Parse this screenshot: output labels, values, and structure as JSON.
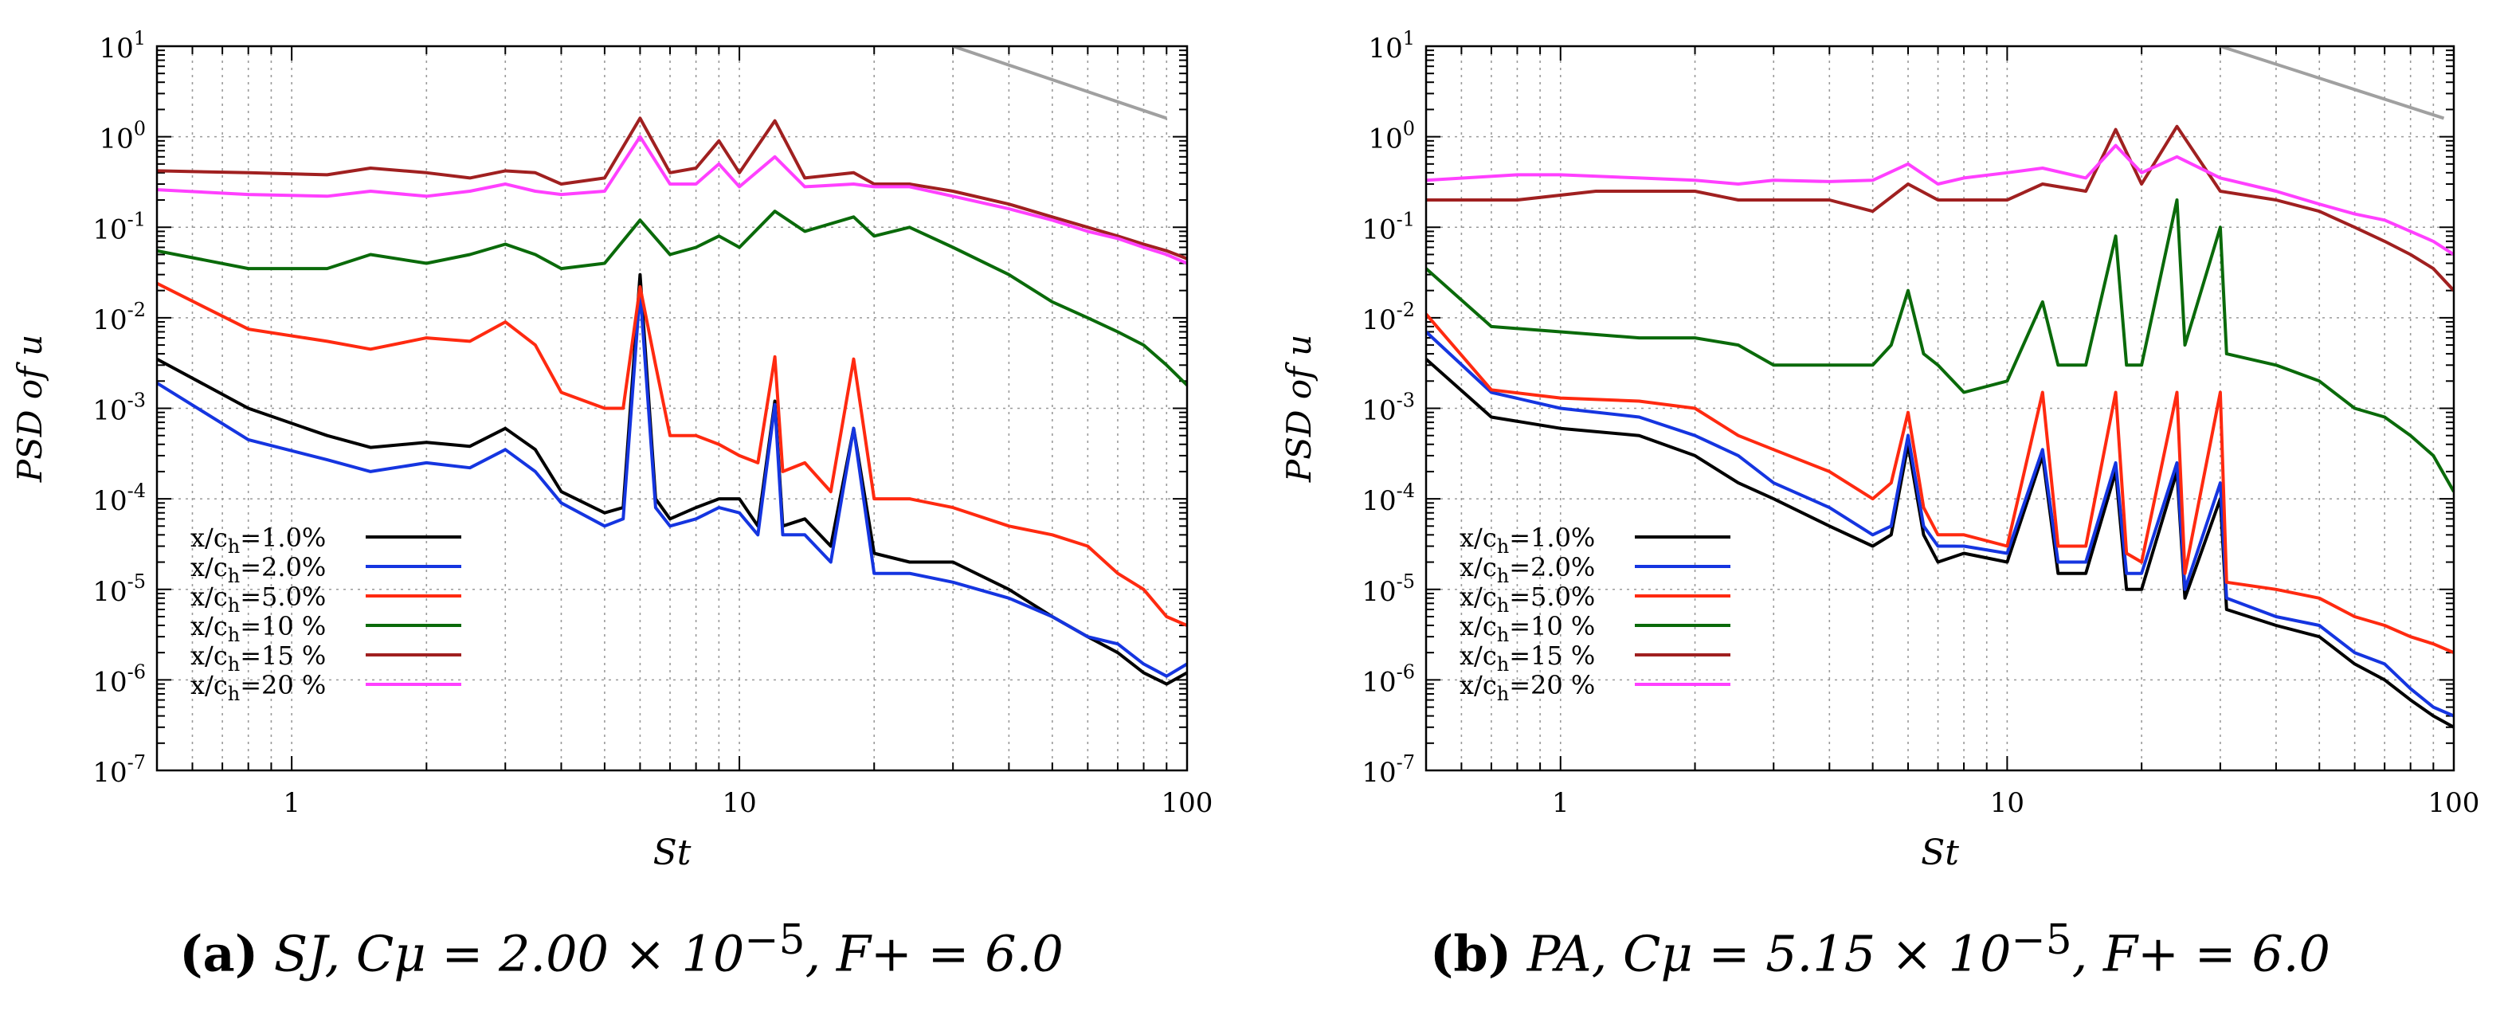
{
  "chart_data": [
    {
      "type": "line",
      "panel": "a",
      "caption_label": "(a)",
      "caption_math": "SJ, Cμ = 2.00 × 10",
      "caption_exp": "−5",
      "caption_tail": ", F+ = 6.0",
      "xlabel": "St",
      "ylabel": "PSD of u",
      "xscale": "log",
      "yscale": "log",
      "xlim": [
        0.5,
        100
      ],
      "ylim": [
        1e-07,
        10
      ],
      "xticks": [
        "1",
        "10",
        "100"
      ],
      "yticks": [
        "10-7",
        "10-6",
        "10-5",
        "10-4",
        "10-3",
        "10-2",
        "10-1",
        "100",
        "101"
      ],
      "grid": true,
      "legend_position": "lower-left",
      "reference_line": {
        "color": "#a0a0a0",
        "x": [
          30,
          90
        ],
        "y": [
          10,
          1.6
        ]
      },
      "series": [
        {
          "name": "x/ch=1.0%",
          "color": "#000000",
          "x": [
            0.5,
            0.8,
            1.2,
            1.5,
            2.0,
            2.5,
            3.0,
            3.5,
            4.0,
            5.0,
            5.5,
            6.0,
            6.5,
            7.0,
            8.0,
            9.0,
            10.0,
            11.0,
            12.0,
            12.5,
            14.0,
            16.0,
            18.0,
            20.0,
            24.0,
            30.0,
            40.0,
            50.0,
            60.0,
            70.0,
            80.0,
            90.0,
            100.0
          ],
          "y": [
            0.0035,
            0.001,
            0.0005,
            0.00037,
            0.00042,
            0.00038,
            0.0006,
            0.00035,
            0.00012,
            7e-05,
            8e-05,
            0.03,
            0.0001,
            6e-05,
            8e-05,
            0.0001,
            0.0001,
            5e-05,
            0.0012,
            5e-05,
            6e-05,
            3e-05,
            0.0006,
            2.5e-05,
            2e-05,
            2e-05,
            1e-05,
            5e-06,
            3e-06,
            2e-06,
            1.2e-06,
            9e-07,
            1.2e-06
          ]
        },
        {
          "name": "x/ch=2.0%",
          "color": "#1535e0",
          "x": [
            0.5,
            0.8,
            1.2,
            1.5,
            2.0,
            2.5,
            3.0,
            3.5,
            4.0,
            5.0,
            5.5,
            6.0,
            6.5,
            7.0,
            8.0,
            9.0,
            10.0,
            11.0,
            12.0,
            12.5,
            14.0,
            16.0,
            18.0,
            20.0,
            24.0,
            30.0,
            40.0,
            50.0,
            60.0,
            70.0,
            80.0,
            90.0,
            100.0
          ],
          "y": [
            0.0019,
            0.00045,
            0.00027,
            0.0002,
            0.00025,
            0.00022,
            0.00035,
            0.0002,
            9e-05,
            5e-05,
            6e-05,
            0.02,
            8e-05,
            5e-05,
            6e-05,
            8e-05,
            7e-05,
            4e-05,
            0.0011,
            4e-05,
            4e-05,
            2e-05,
            0.0006,
            1.5e-05,
            1.5e-05,
            1.2e-05,
            8e-06,
            5e-06,
            3e-06,
            2.5e-06,
            1.5e-06,
            1.1e-06,
            1.5e-06
          ]
        },
        {
          "name": "x/ch=5.0%",
          "color": "#ff2a10",
          "x": [
            0.5,
            0.8,
            1.2,
            1.5,
            2.0,
            2.5,
            3.0,
            3.5,
            4.0,
            5.0,
            5.5,
            6.0,
            6.5,
            7.0,
            8.0,
            9.0,
            10.0,
            11.0,
            12.0,
            12.5,
            14.0,
            16.0,
            18.0,
            20.0,
            24.0,
            30.0,
            40.0,
            50.0,
            60.0,
            70.0,
            80.0,
            90.0,
            100.0
          ],
          "y": [
            0.024,
            0.0075,
            0.0055,
            0.0045,
            0.006,
            0.0055,
            0.009,
            0.005,
            0.0015,
            0.001,
            0.001,
            0.022,
            0.003,
            0.0005,
            0.0005,
            0.0004,
            0.0003,
            0.00025,
            0.0037,
            0.0002,
            0.00025,
            0.00012,
            0.0035,
            0.0001,
            0.0001,
            8e-05,
            5e-05,
            4e-05,
            3e-05,
            1.5e-05,
            1e-05,
            5e-06,
            4e-06
          ]
        },
        {
          "name": "x/ch=10 %",
          "color": "#0a6a0a",
          "x": [
            0.5,
            0.8,
            1.2,
            1.5,
            2.0,
            2.5,
            3.0,
            3.5,
            4.0,
            5.0,
            6.0,
            7.0,
            8.0,
            9.0,
            10.0,
            12.0,
            14.0,
            18.0,
            20.0,
            24.0,
            30.0,
            40.0,
            50.0,
            60.0,
            70.0,
            80.0,
            90.0,
            100.0
          ],
          "y": [
            0.055,
            0.035,
            0.035,
            0.05,
            0.04,
            0.05,
            0.065,
            0.05,
            0.035,
            0.04,
            0.12,
            0.05,
            0.06,
            0.08,
            0.06,
            0.15,
            0.09,
            0.13,
            0.08,
            0.1,
            0.06,
            0.03,
            0.015,
            0.01,
            0.007,
            0.005,
            0.003,
            0.0018
          ]
        },
        {
          "name": "x/ch=15 %",
          "color": "#a02020",
          "x": [
            0.5,
            0.8,
            1.2,
            1.5,
            2.0,
            2.5,
            3.0,
            3.5,
            4.0,
            5.0,
            6.0,
            7.0,
            8.0,
            9.0,
            10.0,
            12.0,
            14.0,
            18.0,
            20.0,
            24.0,
            30.0,
            40.0,
            50.0,
            60.0,
            70.0,
            80.0,
            90.0,
            100.0
          ],
          "y": [
            0.42,
            0.4,
            0.38,
            0.45,
            0.4,
            0.35,
            0.42,
            0.4,
            0.3,
            0.35,
            1.6,
            0.4,
            0.45,
            0.9,
            0.4,
            1.5,
            0.35,
            0.4,
            0.3,
            0.3,
            0.25,
            0.18,
            0.13,
            0.1,
            0.08,
            0.065,
            0.055,
            0.045
          ]
        },
        {
          "name": "x/ch=20 %",
          "color": "#ff40ff",
          "x": [
            0.5,
            0.8,
            1.2,
            1.5,
            2.0,
            2.5,
            3.0,
            3.5,
            4.0,
            5.0,
            6.0,
            7.0,
            8.0,
            9.0,
            10.0,
            12.0,
            14.0,
            18.0,
            20.0,
            24.0,
            30.0,
            40.0,
            50.0,
            60.0,
            70.0,
            80.0,
            90.0,
            100.0
          ],
          "y": [
            0.26,
            0.23,
            0.22,
            0.25,
            0.22,
            0.25,
            0.3,
            0.25,
            0.23,
            0.25,
            1.0,
            0.3,
            0.3,
            0.5,
            0.28,
            0.6,
            0.28,
            0.3,
            0.28,
            0.28,
            0.22,
            0.16,
            0.12,
            0.09,
            0.075,
            0.06,
            0.05,
            0.04
          ]
        }
      ]
    },
    {
      "type": "line",
      "panel": "b",
      "caption_label": "(b)",
      "caption_math": "PA, Cμ = 5.15 × 10",
      "caption_exp": "−5",
      "caption_tail": ", F+ = 6.0",
      "xlabel": "St",
      "ylabel": "PSD of u",
      "xscale": "log",
      "yscale": "log",
      "xlim": [
        0.5,
        100
      ],
      "ylim": [
        1e-07,
        10
      ],
      "xticks": [
        "1",
        "10",
        "100"
      ],
      "yticks": [
        "10-7",
        "10-6",
        "10-5",
        "10-4",
        "10-3",
        "10-2",
        "10-1",
        "100",
        "101"
      ],
      "grid": true,
      "legend_position": "lower-left",
      "reference_line": {
        "color": "#a0a0a0",
        "x": [
          30,
          95
        ],
        "y": [
          10,
          1.6
        ]
      },
      "series": [
        {
          "name": "x/ch=1.0%",
          "color": "#000000",
          "x": [
            0.5,
            0.7,
            1.0,
            1.5,
            2.0,
            2.5,
            3.0,
            4.0,
            5.0,
            5.5,
            6.0,
            6.5,
            7.0,
            8.0,
            10.0,
            12.0,
            13.0,
            15.0,
            17.5,
            18.5,
            20.0,
            24.0,
            25.0,
            30.0,
            31.0,
            40.0,
            50.0,
            60.0,
            70.0,
            80.0,
            90.0,
            100.0
          ],
          "y": [
            0.0035,
            0.0008,
            0.0006,
            0.0005,
            0.0003,
            0.00015,
            0.0001,
            5e-05,
            3e-05,
            4e-05,
            0.0004,
            4e-05,
            2e-05,
            2.5e-05,
            2e-05,
            0.0003,
            1.5e-05,
            1.5e-05,
            0.0002,
            1e-05,
            1e-05,
            0.0002,
            8e-06,
            0.0001,
            6e-06,
            4e-06,
            3e-06,
            1.5e-06,
            1e-06,
            6e-07,
            4e-07,
            3e-07
          ]
        },
        {
          "name": "x/ch=2.0%",
          "color": "#1535e0",
          "x": [
            0.5,
            0.7,
            1.0,
            1.5,
            2.0,
            2.5,
            3.0,
            4.0,
            5.0,
            5.5,
            6.0,
            6.5,
            7.0,
            8.0,
            10.0,
            12.0,
            13.0,
            15.0,
            17.5,
            18.5,
            20.0,
            24.0,
            25.0,
            30.0,
            31.0,
            40.0,
            50.0,
            60.0,
            70.0,
            80.0,
            90.0,
            100.0
          ],
          "y": [
            0.007,
            0.0015,
            0.001,
            0.0008,
            0.0005,
            0.0003,
            0.00015,
            8e-05,
            4e-05,
            5e-05,
            0.0005,
            5e-05,
            3e-05,
            3e-05,
            2.5e-05,
            0.00035,
            2e-05,
            2e-05,
            0.00025,
            1.5e-05,
            1.5e-05,
            0.00025,
            1e-05,
            0.00015,
            8e-06,
            5e-06,
            4e-06,
            2e-06,
            1.5e-06,
            8e-07,
            5e-07,
            4e-07
          ]
        },
        {
          "name": "x/ch=5.0%",
          "color": "#ff2a10",
          "x": [
            0.5,
            0.7,
            1.0,
            1.5,
            2.0,
            2.5,
            3.0,
            4.0,
            5.0,
            5.5,
            6.0,
            6.5,
            7.0,
            8.0,
            10.0,
            12.0,
            13.0,
            15.0,
            17.5,
            18.5,
            20.0,
            24.0,
            25.0,
            30.0,
            31.0,
            40.0,
            50.0,
            60.0,
            70.0,
            80.0,
            90.0,
            100.0
          ],
          "y": [
            0.011,
            0.0016,
            0.0013,
            0.0012,
            0.001,
            0.0005,
            0.00035,
            0.0002,
            0.0001,
            0.00015,
            0.0009,
            8e-05,
            4e-05,
            4e-05,
            3e-05,
            0.0015,
            3e-05,
            3e-05,
            0.0015,
            2.5e-05,
            2e-05,
            0.0015,
            1.5e-05,
            0.0015,
            1.2e-05,
            1e-05,
            8e-06,
            5e-06,
            4e-06,
            3e-06,
            2.5e-06,
            2e-06
          ]
        },
        {
          "name": "x/ch=10 %",
          "color": "#0a6a0a",
          "x": [
            0.5,
            0.7,
            1.0,
            1.5,
            2.0,
            2.5,
            3.0,
            4.0,
            5.0,
            5.5,
            6.0,
            6.5,
            7.0,
            8.0,
            10.0,
            12.0,
            13.0,
            15.0,
            17.5,
            18.5,
            20.0,
            24.0,
            25.0,
            30.0,
            31.0,
            40.0,
            50.0,
            60.0,
            70.0,
            80.0,
            90.0,
            100.0
          ],
          "y": [
            0.035,
            0.008,
            0.007,
            0.006,
            0.006,
            0.005,
            0.003,
            0.003,
            0.003,
            0.005,
            0.02,
            0.004,
            0.003,
            0.0015,
            0.002,
            0.015,
            0.003,
            0.003,
            0.08,
            0.003,
            0.003,
            0.2,
            0.005,
            0.1,
            0.004,
            0.003,
            0.002,
            0.001,
            0.0008,
            0.0005,
            0.0003,
            0.00012
          ]
        },
        {
          "name": "x/ch=15 %",
          "color": "#a02020",
          "x": [
            0.5,
            0.8,
            1.2,
            1.5,
            2.0,
            2.5,
            3.0,
            4.0,
            5.0,
            6.0,
            7.0,
            8.0,
            10.0,
            12.0,
            15.0,
            17.5,
            20.0,
            24.0,
            30.0,
            40.0,
            50.0,
            60.0,
            70.0,
            80.0,
            90.0,
            100.0
          ],
          "y": [
            0.2,
            0.2,
            0.25,
            0.25,
            0.25,
            0.2,
            0.2,
            0.2,
            0.15,
            0.3,
            0.2,
            0.2,
            0.2,
            0.3,
            0.25,
            1.2,
            0.3,
            1.3,
            0.25,
            0.2,
            0.15,
            0.1,
            0.07,
            0.05,
            0.035,
            0.02
          ]
        },
        {
          "name": "x/ch=20 %",
          "color": "#ff40ff",
          "x": [
            0.5,
            0.8,
            1.0,
            1.5,
            2.0,
            2.5,
            3.0,
            4.0,
            5.0,
            6.0,
            7.0,
            8.0,
            10.0,
            12.0,
            15.0,
            17.5,
            20.0,
            24.0,
            30.0,
            40.0,
            50.0,
            60.0,
            70.0,
            80.0,
            90.0,
            100.0
          ],
          "y": [
            0.33,
            0.38,
            0.38,
            0.35,
            0.33,
            0.3,
            0.33,
            0.32,
            0.33,
            0.5,
            0.3,
            0.35,
            0.4,
            0.45,
            0.35,
            0.8,
            0.4,
            0.6,
            0.35,
            0.25,
            0.18,
            0.14,
            0.12,
            0.09,
            0.07,
            0.05
          ]
        }
      ]
    }
  ]
}
